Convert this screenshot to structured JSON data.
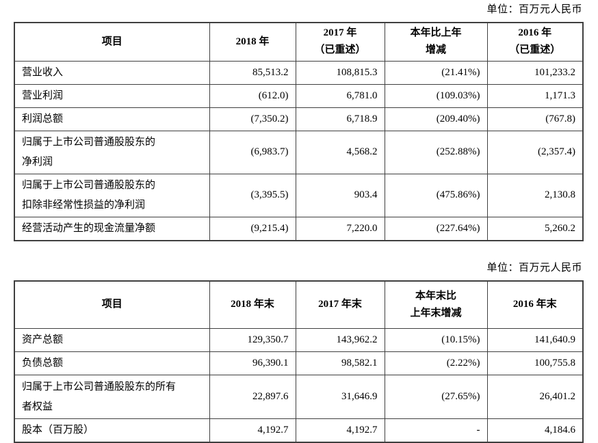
{
  "section1": {
    "unit_note": "单位：百万元人民币",
    "headers": [
      "项目",
      "2018 年",
      "2017 年\n（已重述）",
      "本年比上年\n增减",
      "2016 年\n（已重述）"
    ],
    "rows": [
      {
        "label": "营业收入",
        "values": [
          "85,513.2",
          "108,815.3",
          "(21.41%)",
          "101,233.2"
        ]
      },
      {
        "label": "营业利润",
        "values": [
          "(612.0)",
          "6,781.0",
          "(109.03%)",
          "1,171.3"
        ]
      },
      {
        "label": "利润总额",
        "values": [
          "(7,350.2)",
          "6,718.9",
          "(209.40%)",
          "(767.8)"
        ]
      },
      {
        "label": "归属于上市公司普通股股东的\n净利润",
        "values": [
          "(6,983.7)",
          "4,568.2",
          "(252.88%)",
          "(2,357.4)"
        ]
      },
      {
        "label": "归属于上市公司普通股股东的\n扣除非经常性损益的净利润",
        "values": [
          "(3,395.5)",
          "903.4",
          "(475.86%)",
          "2,130.8"
        ]
      },
      {
        "label": "经营活动产生的现金流量净额",
        "values": [
          "(9,215.4)",
          "7,220.0",
          "(227.64%)",
          "5,260.2"
        ]
      }
    ]
  },
  "section2": {
    "unit_note": "单位：百万元人民币",
    "headers": [
      "项目",
      "2018 年末",
      "2017 年末",
      "本年末比\n上年末增减",
      "2016 年末"
    ],
    "rows": [
      {
        "label": "资产总额",
        "values": [
          "129,350.7",
          "143,962.2",
          "(10.15%)",
          "141,640.9"
        ]
      },
      {
        "label": "负债总额",
        "values": [
          "96,390.1",
          "98,582.1",
          "(2.22%)",
          "100,755.8"
        ]
      },
      {
        "label": "归属于上市公司普通股股东的所有\n者权益",
        "values": [
          "22,897.6",
          "31,646.9",
          "(27.65%)",
          "26,401.2"
        ]
      },
      {
        "label": "股本（百万股）",
        "values": [
          "4,192.7",
          "4,192.7",
          "-",
          "4,184.6"
        ]
      }
    ]
  }
}
